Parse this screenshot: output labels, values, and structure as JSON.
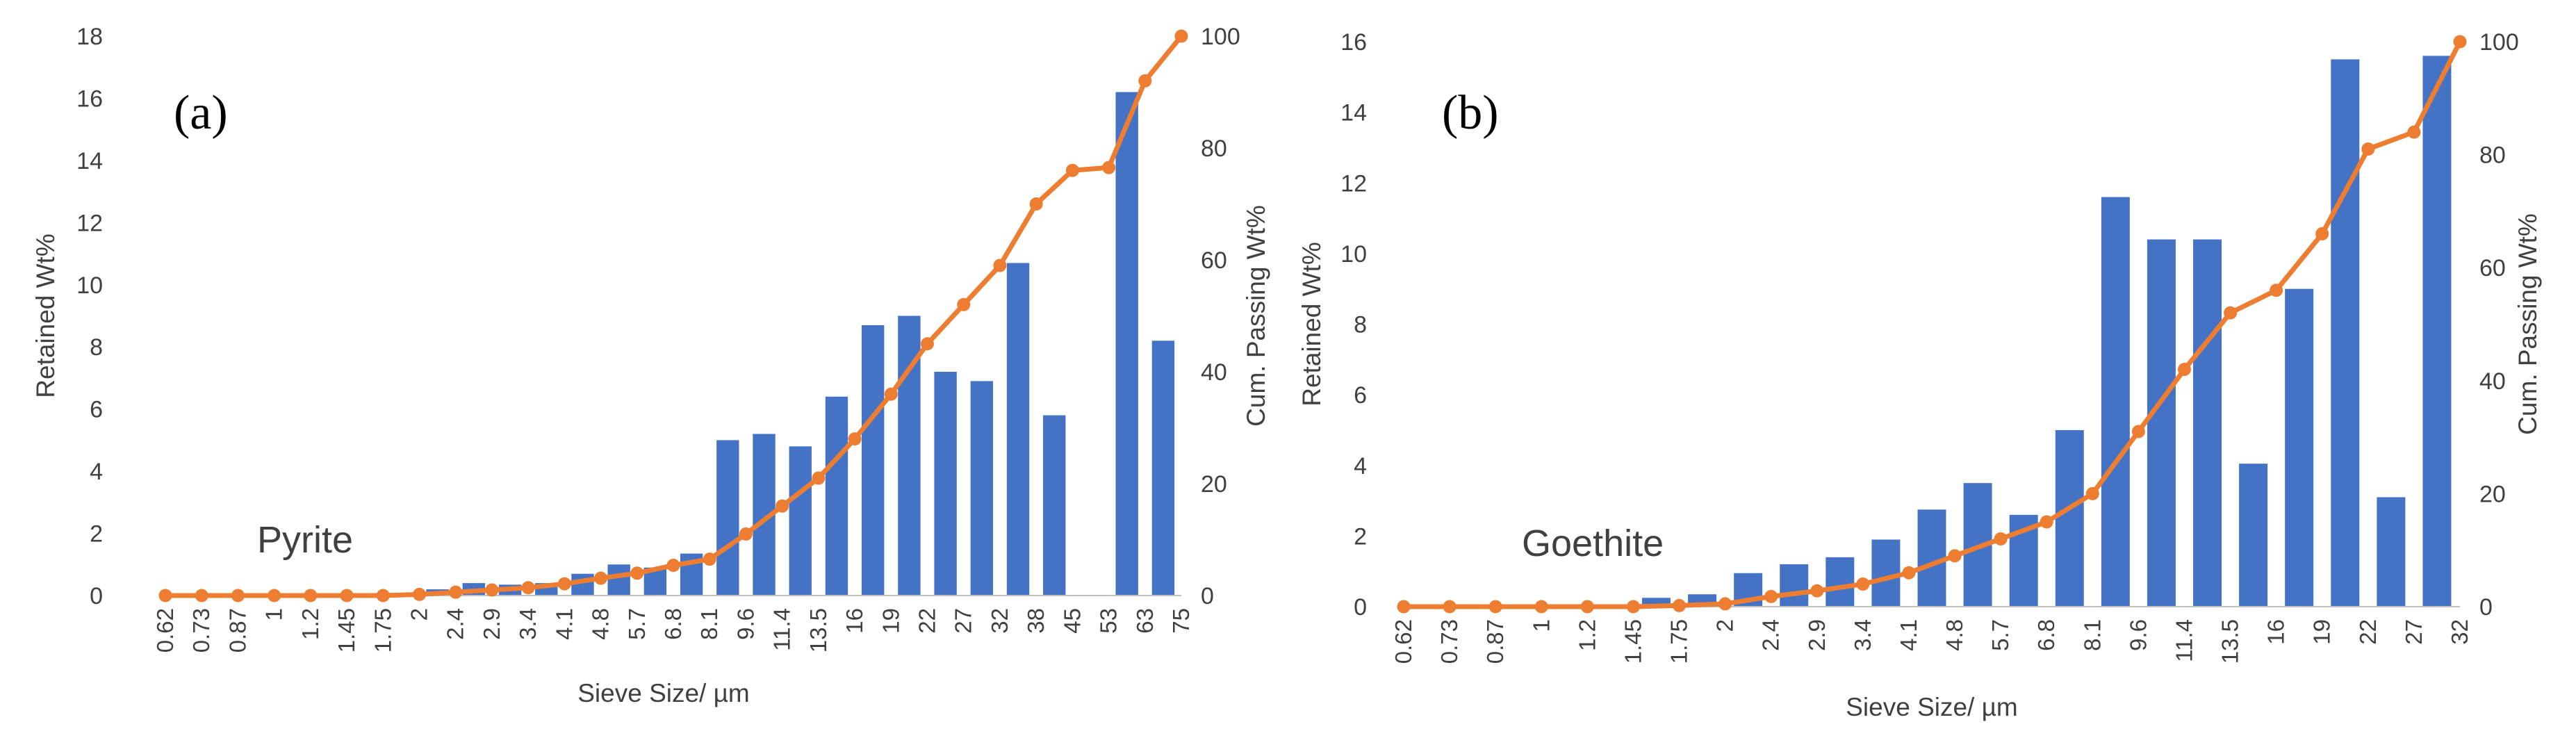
{
  "figure": {
    "description_labels": [
      "(a)",
      "(b)"
    ]
  },
  "colors": {
    "bar": "#4472C4",
    "line": "#ED7D31",
    "axis": "#595959",
    "text": "#404040"
  },
  "chart_data": [
    {
      "type": "bar",
      "panel_label": "(a)",
      "annotation": "Pyrite",
      "categories": [
        "0.62",
        "0.73",
        "0.87",
        "1",
        "1.2",
        "1.45",
        "1.75",
        "2",
        "2.4",
        "2.9",
        "3.4",
        "4.1",
        "4.8",
        "5.7",
        "6.8",
        "8.1",
        "9.6",
        "11.4",
        "13.5",
        "16",
        "19",
        "22",
        "27",
        "32",
        "38",
        "45",
        "53",
        "63",
        "75"
      ],
      "series": [
        {
          "name": "Retained Wt%",
          "type": "bar",
          "axis": "left",
          "values": [
            0,
            0,
            0,
            0,
            0,
            0,
            0,
            0.2,
            0.4,
            0.35,
            0.4,
            0.7,
            1.0,
            0.9,
            1.35,
            5.0,
            5.2,
            4.8,
            6.4,
            8.7,
            9.0,
            7.2,
            6.9,
            10.7,
            5.8,
            0,
            16.2,
            8.2,
            null
          ]
        },
        {
          "name": "Cum. Passing Wt%",
          "type": "line",
          "axis": "right",
          "values": [
            0,
            0,
            0,
            0,
            0,
            0,
            0,
            0.2,
            0.6,
            1,
            1.4,
            2.1,
            3.1,
            4,
            5.4,
            6.5,
            11,
            16,
            21,
            28,
            36,
            45,
            52,
            59,
            70,
            76,
            76.5,
            92,
            100
          ]
        }
      ],
      "xlabel": "Sieve Size/ µm",
      "ylabel": "Retained Wt%",
      "y2label": "Cum. Passing Wt%",
      "ylim": [
        0,
        18
      ],
      "y_ticks": [
        0,
        2,
        4,
        6,
        8,
        10,
        12,
        14,
        16,
        18
      ],
      "y2lim": [
        0,
        100
      ],
      "y2_ticks": [
        0,
        20,
        40,
        60,
        80,
        100
      ],
      "grid": false
    },
    {
      "type": "bar",
      "panel_label": "(b)",
      "annotation": "Goethite",
      "categories": [
        "0.62",
        "0.73",
        "0.87",
        "1",
        "1.2",
        "1.45",
        "1.75",
        "2",
        "2.4",
        "2.9",
        "3.4",
        "4.1",
        "4.8",
        "5.7",
        "6.8",
        "8.1",
        "9.6",
        "11.4",
        "13.5",
        "16",
        "19",
        "22",
        "27",
        "32"
      ],
      "series": [
        {
          "name": "Retained Wt%",
          "type": "bar",
          "axis": "left",
          "values": [
            0,
            0,
            0,
            0,
            0,
            0.25,
            0.35,
            0.95,
            1.2,
            1.4,
            1.9,
            2.75,
            3.5,
            2.6,
            5.0,
            11.6,
            10.4,
            10.4,
            4.05,
            9.0,
            15.5,
            3.1,
            15.6,
            null
          ]
        },
        {
          "name": "Cum. Passing Wt%",
          "type": "line",
          "axis": "right",
          "values": [
            0,
            0,
            0,
            0,
            0,
            0,
            0.2,
            0.5,
            1.8,
            2.8,
            4,
            6,
            9,
            12,
            15,
            20,
            31,
            42,
            52,
            56,
            66,
            81,
            84,
            100
          ]
        }
      ],
      "xlabel": "Sieve Size/ µm",
      "ylabel": "Retained Wt%",
      "y2label": "Cum. Passing Wt%",
      "ylim": [
        0,
        16
      ],
      "y_ticks": [
        0,
        2,
        4,
        6,
        8,
        10,
        12,
        14,
        16
      ],
      "y2lim": [
        0,
        100
      ],
      "y2_ticks": [
        0,
        20,
        40,
        60,
        80,
        100
      ],
      "grid": false
    }
  ]
}
